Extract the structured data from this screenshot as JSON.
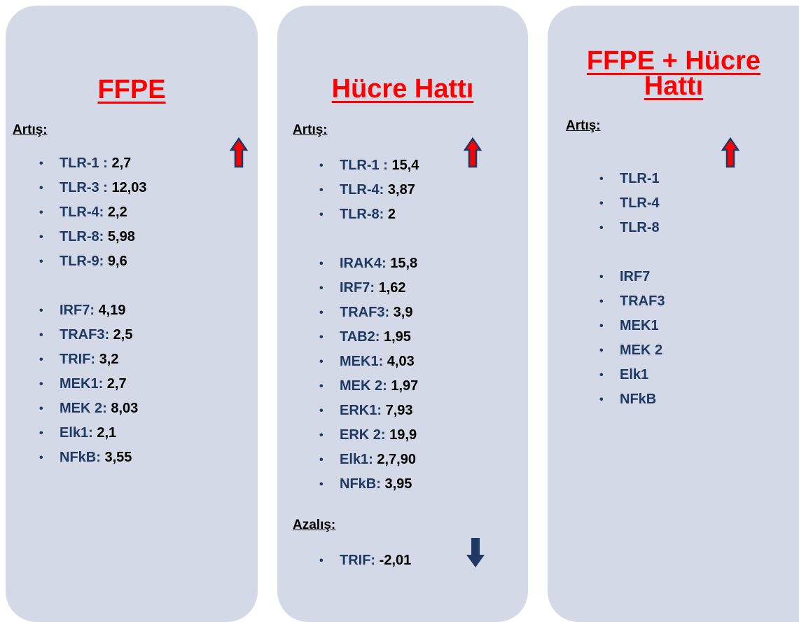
{
  "panels": [
    {
      "title": "FFPE",
      "sections": [
        {
          "heading": "Artış:",
          "groups": [
            [
              {
                "name": "TLR-1 :",
                "value": "2,7"
              },
              {
                "name": "TLR-3 :",
                "value": "12,03"
              },
              {
                "name": "TLR-4:",
                "value": "2,2"
              },
              {
                "name": "TLR-8:",
                "value": "5,98"
              },
              {
                "name": "TLR-9:",
                "value": "9,6"
              }
            ],
            [
              {
                "name": "IRF7:",
                "value": "4,19"
              },
              {
                "name": "TRAF3:",
                "value": "2,5"
              },
              {
                "name": "TRIF:",
                "value": "3,2"
              },
              {
                "name": "MEK1:",
                "value": "2,7"
              },
              {
                "name": "MEK 2:",
                "value": "8,03"
              },
              {
                "name": "Elk1:",
                "value": "2,1"
              },
              {
                "name": "NFkB:",
                "value": "3,55"
              }
            ]
          ]
        }
      ]
    },
    {
      "title": "Hücre Hattı",
      "sections": [
        {
          "heading": "Artış:",
          "groups": [
            [
              {
                "name": "TLR-1 :",
                "value": "15,4"
              },
              {
                "name": "TLR-4:",
                "value": "3,87"
              },
              {
                "name": "TLR-8:",
                "value": "2"
              }
            ],
            [
              {
                "name": "IRAK4:",
                "value": "15,8"
              },
              {
                "name": "IRF7:",
                "value": "1,62"
              },
              {
                "name": "TRAF3:",
                "value": "3,9"
              },
              {
                "name": "TAB2:",
                "value": "1,95"
              },
              {
                "name": "MEK1:",
                "value": "4,03"
              },
              {
                "name": "MEK 2:",
                "value": "1,97"
              },
              {
                "name": "ERK1:",
                "value": "7,93"
              },
              {
                "name": "ERK 2:",
                "value": "19,9"
              },
              {
                "name": "Elk1:",
                "value": "2,7,90"
              },
              {
                "name": "NFkB:",
                "value": "3,95"
              }
            ]
          ]
        },
        {
          "heading": "Azalış:",
          "groups": [
            [
              {
                "name": "TRIF:",
                "value": "-2,01"
              }
            ]
          ]
        }
      ]
    },
    {
      "title": "FFPE + Hücre Hattı",
      "sections": [
        {
          "heading": "Artış:",
          "groups": [
            [
              {
                "name": "TLR-1"
              },
              {
                "name": "TLR-4"
              },
              {
                "name": "TLR-8"
              }
            ],
            [
              {
                "name": "IRF7"
              },
              {
                "name": "TRAF3"
              },
              {
                "name": "MEK1"
              },
              {
                "name": "MEK 2"
              },
              {
                "name": "Elk1"
              },
              {
                "name": "NFkB"
              }
            ]
          ]
        }
      ]
    }
  ]
}
